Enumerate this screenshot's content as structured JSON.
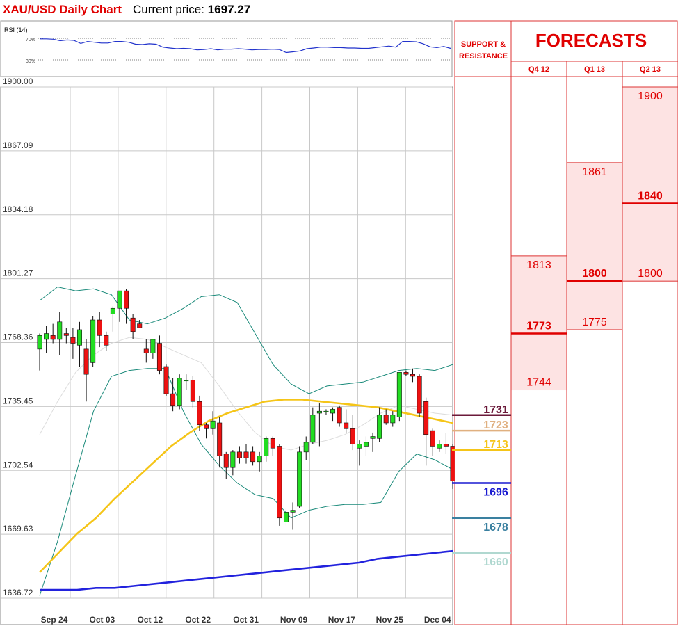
{
  "header": {
    "pair_title": "XAU/USD Daily Chart",
    "price_label": "Current price:",
    "price_value": "1697.27"
  },
  "rsi_panel": {
    "label": "RSI (14)",
    "level_high_label": "70%",
    "level_low_label": "30%"
  },
  "forecast_panel": {
    "sr_heading_line1": "SUPPORT &",
    "sr_heading_line2": "RESISTANCE",
    "title": "FORECASTS",
    "quarters": [
      "Q4 12",
      "Q1 13",
      "Q2 13"
    ]
  },
  "colors": {
    "up_candle": "#22dd22",
    "down_candle": "#ee1111",
    "ma50": "#f5c518",
    "ma200": "#2222dd",
    "bollinger": "#1a8a7a",
    "grid": "#c8c8c8",
    "forecast_fill": "#fde3e3",
    "forecast_red": "#e00000"
  },
  "chart_data": [
    {
      "type": "candlestick",
      "title": "XAU/USD Daily Chart",
      "yticks": [
        "1900.00",
        "1867.09",
        "1834.18",
        "1801.27",
        "1768.36",
        "1735.45",
        "1702.54",
        "1669.63",
        "1636.72"
      ],
      "ylim": [
        1636.72,
        1900
      ],
      "xticks": [
        "Sep 24",
        "Oct 03",
        "Oct 12",
        "Oct 22",
        "Oct 31",
        "Nov 09",
        "Nov 17",
        "Nov 25",
        "Dec 04"
      ],
      "grid": true,
      "candles": [
        {
          "o": 1765,
          "h": 1773,
          "l": 1754,
          "c": 1772
        },
        {
          "o": 1770,
          "h": 1777,
          "l": 1763,
          "c": 1773
        },
        {
          "o": 1772,
          "h": 1778,
          "l": 1768,
          "c": 1770
        },
        {
          "o": 1770,
          "h": 1784,
          "l": 1762,
          "c": 1779
        },
        {
          "o": 1773,
          "h": 1776,
          "l": 1768,
          "c": 1772
        },
        {
          "o": 1771,
          "h": 1776,
          "l": 1760,
          "c": 1768
        },
        {
          "o": 1767,
          "h": 1779,
          "l": 1756,
          "c": 1775
        },
        {
          "o": 1765,
          "h": 1770,
          "l": 1738,
          "c": 1752
        },
        {
          "o": 1758,
          "h": 1782,
          "l": 1756,
          "c": 1780
        },
        {
          "o": 1780,
          "h": 1784,
          "l": 1766,
          "c": 1772
        },
        {
          "o": 1772,
          "h": 1774,
          "l": 1764,
          "c": 1767
        },
        {
          "o": 1783,
          "h": 1787,
          "l": 1774,
          "c": 1786
        },
        {
          "o": 1786,
          "h": 1794,
          "l": 1779,
          "c": 1795
        },
        {
          "o": 1795,
          "h": 1796,
          "l": 1778,
          "c": 1786
        },
        {
          "o": 1781,
          "h": 1783,
          "l": 1770,
          "c": 1774
        },
        {
          "o": 1778,
          "h": 1780,
          "l": 1776,
          "c": 1776
        },
        {
          "o": 1765,
          "h": 1770,
          "l": 1758,
          "c": 1763
        },
        {
          "o": 1763,
          "h": 1770,
          "l": 1760,
          "c": 1770
        },
        {
          "o": 1768,
          "h": 1772,
          "l": 1752,
          "c": 1754
        },
        {
          "o": 1756,
          "h": 1757,
          "l": 1741,
          "c": 1742
        },
        {
          "o": 1742,
          "h": 1750,
          "l": 1733,
          "c": 1736
        },
        {
          "o": 1736,
          "h": 1752,
          "l": 1734,
          "c": 1750
        },
        {
          "o": 1749,
          "h": 1752,
          "l": 1744,
          "c": 1749
        },
        {
          "o": 1749,
          "h": 1751,
          "l": 1735,
          "c": 1738
        },
        {
          "o": 1738,
          "h": 1741,
          "l": 1723,
          "c": 1726
        },
        {
          "o": 1726,
          "h": 1727,
          "l": 1719,
          "c": 1724
        },
        {
          "o": 1724,
          "h": 1733,
          "l": 1721,
          "c": 1728
        },
        {
          "o": 1727,
          "h": 1730,
          "l": 1704,
          "c": 1710
        },
        {
          "o": 1711,
          "h": 1712,
          "l": 1698,
          "c": 1704
        },
        {
          "o": 1704,
          "h": 1713,
          "l": 1700,
          "c": 1712
        },
        {
          "o": 1712,
          "h": 1715,
          "l": 1706,
          "c": 1709
        },
        {
          "o": 1712,
          "h": 1716,
          "l": 1706,
          "c": 1709
        },
        {
          "o": 1712,
          "h": 1715,
          "l": 1705,
          "c": 1707
        },
        {
          "o": 1707,
          "h": 1712,
          "l": 1702,
          "c": 1710
        },
        {
          "o": 1710,
          "h": 1720,
          "l": 1707,
          "c": 1719
        },
        {
          "o": 1719,
          "h": 1720,
          "l": 1710,
          "c": 1714
        },
        {
          "o": 1715,
          "h": 1716,
          "l": 1674,
          "c": 1678
        },
        {
          "o": 1676,
          "h": 1683,
          "l": 1674,
          "c": 1681
        },
        {
          "o": 1681,
          "h": 1686,
          "l": 1672,
          "c": 1682
        },
        {
          "o": 1684,
          "h": 1715,
          "l": 1683,
          "c": 1712
        },
        {
          "o": 1712,
          "h": 1720,
          "l": 1708,
          "c": 1717
        },
        {
          "o": 1717,
          "h": 1735,
          "l": 1716,
          "c": 1731
        },
        {
          "o": 1732,
          "h": 1737,
          "l": 1715,
          "c": 1733
        },
        {
          "o": 1733,
          "h": 1734,
          "l": 1731,
          "c": 1733
        },
        {
          "o": 1732,
          "h": 1735,
          "l": 1728,
          "c": 1734
        },
        {
          "o": 1735,
          "h": 1736,
          "l": 1725,
          "c": 1727
        },
        {
          "o": 1727,
          "h": 1734,
          "l": 1722,
          "c": 1724
        },
        {
          "o": 1724,
          "h": 1731,
          "l": 1713,
          "c": 1716
        },
        {
          "o": 1714,
          "h": 1718,
          "l": 1705,
          "c": 1716
        },
        {
          "o": 1715,
          "h": 1720,
          "l": 1710,
          "c": 1717
        },
        {
          "o": 1719,
          "h": 1722,
          "l": 1712,
          "c": 1720
        },
        {
          "o": 1719,
          "h": 1735,
          "l": 1717,
          "c": 1731
        },
        {
          "o": 1731,
          "h": 1734,
          "l": 1726,
          "c": 1727
        },
        {
          "o": 1727,
          "h": 1733,
          "l": 1725,
          "c": 1731
        },
        {
          "o": 1730,
          "h": 1753,
          "l": 1728,
          "c": 1753
        },
        {
          "o": 1753,
          "h": 1754,
          "l": 1751,
          "c": 1752
        },
        {
          "o": 1752,
          "h": 1755,
          "l": 1748,
          "c": 1751
        },
        {
          "o": 1751,
          "h": 1752,
          "l": 1730,
          "c": 1732
        },
        {
          "o": 1738,
          "h": 1740,
          "l": 1705,
          "c": 1721
        },
        {
          "o": 1723,
          "h": 1724,
          "l": 1710,
          "c": 1715
        },
        {
          "o": 1714,
          "h": 1718,
          "l": 1712,
          "c": 1716
        },
        {
          "o": 1716,
          "h": 1722,
          "l": 1711,
          "c": 1715
        },
        {
          "o": 1715,
          "h": 1716,
          "l": 1693,
          "c": 1697
        }
      ],
      "moving_averages": [
        {
          "name": "MA50",
          "points": [
            1650,
            1660,
            1670,
            1678,
            1688,
            1697,
            1706,
            1715,
            1722,
            1728,
            1732,
            1735,
            1738,
            1739,
            1739,
            1738,
            1737,
            1736,
            1735,
            1733,
            1731,
            1729,
            1727
          ]
        },
        {
          "name": "MA200",
          "points": [
            1641,
            1641,
            1641,
            1642,
            1642,
            1643,
            1644,
            1645,
            1646,
            1647,
            1648,
            1649,
            1650,
            1651,
            1652,
            1653,
            1654,
            1655,
            1657,
            1658,
            1659,
            1660,
            1661
          ]
        }
      ],
      "bollinger_bands": {
        "upper": [
          1790,
          1797,
          1795,
          1796,
          1793,
          1780,
          1778,
          1781,
          1786,
          1792,
          1793,
          1789,
          1773,
          1757,
          1747,
          1742,
          1746,
          1747,
          1748,
          1751,
          1754,
          1755,
          1754,
          1757
        ],
        "middle": [
          1721,
          1738,
          1753,
          1762,
          1768,
          1771,
          1770,
          1766,
          1762,
          1758,
          1746,
          1733,
          1722,
          1715,
          1713,
          1716,
          1718,
          1721,
          1726,
          1732,
          1736,
          1734,
          1732,
          1731
        ],
        "lower": [
          1638,
          1666,
          1700,
          1733,
          1751,
          1754,
          1755,
          1755,
          1733,
          1716,
          1705,
          1696,
          1690,
          1688,
          1678,
          1682,
          1684,
          1685,
          1685,
          1686,
          1702,
          1711,
          1708,
          1703
        ]
      }
    },
    {
      "type": "line",
      "title": "RSI (14)",
      "ylim": [
        0,
        100
      ],
      "reference_levels": [
        70,
        30
      ],
      "values": [
        75,
        75,
        74,
        70,
        72,
        71,
        63,
        68,
        66,
        64,
        64,
        68,
        68,
        66,
        61,
        60,
        62,
        61,
        53,
        51,
        49,
        50,
        49,
        46,
        47,
        49,
        46,
        48,
        48,
        49,
        48,
        46,
        47,
        47,
        48,
        47,
        39,
        41,
        43,
        49,
        51,
        53,
        53,
        52,
        52,
        51,
        51,
        50,
        50,
        52,
        54,
        56,
        53,
        68,
        68,
        67,
        62,
        54,
        52,
        55,
        50
      ]
    },
    {
      "type": "table",
      "title": "FORECASTS",
      "support_resistance": [
        {
          "label": "1731",
          "value": 1731,
          "color": "#6b1a3a"
        },
        {
          "label": "1723",
          "value": 1723,
          "color": "#e0b080"
        },
        {
          "label": "1713",
          "value": 1713,
          "color": "#f5c518"
        },
        {
          "label": "1696",
          "value": 1696,
          "color": "#1a1ad0"
        },
        {
          "label": "1678",
          "value": 1678,
          "color": "#3a80a0"
        },
        {
          "label": "1660",
          "value": 1660,
          "color": "#b0d8d0"
        }
      ],
      "forecasts": [
        {
          "quarter": "Q4 12",
          "high": 1813,
          "mid": 1773,
          "low": 1744,
          "high_label": "1813",
          "mid_label": "1773",
          "low_label": "1744"
        },
        {
          "quarter": "Q1 13",
          "high": 1861,
          "mid": 1800,
          "low": 1775,
          "high_label": "1861",
          "mid_label": "1800",
          "low_label": "1775"
        },
        {
          "quarter": "Q2 13",
          "high": 1900,
          "mid": 1840,
          "low": 1800,
          "high_label": "1900",
          "mid_label": "1840",
          "low_label": "1800"
        }
      ]
    }
  ]
}
